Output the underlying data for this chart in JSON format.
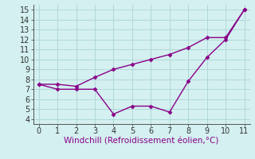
{
  "x": [
    0,
    1,
    2,
    3,
    4,
    5,
    6,
    7,
    8,
    9,
    10,
    11
  ],
  "line1": [
    7.5,
    7.5,
    7.3,
    8.2,
    9.0,
    9.5,
    10.0,
    10.5,
    11.2,
    12.2,
    12.2,
    15.0
  ],
  "line2": [
    7.5,
    7.0,
    7.0,
    7.0,
    4.5,
    5.3,
    5.3,
    4.7,
    7.8,
    10.2,
    12.0,
    15.0
  ],
  "color": "#880088",
  "marker": "D",
  "markersize": 2.5,
  "linewidth": 1.0,
  "xlabel": "Windchill (Refroidissement éolien,°C)",
  "xlim": [
    -0.3,
    11.3
  ],
  "ylim": [
    3.5,
    15.5
  ],
  "yticks": [
    4,
    5,
    6,
    7,
    8,
    9,
    10,
    11,
    12,
    13,
    14,
    15
  ],
  "xticks": [
    0,
    1,
    2,
    3,
    4,
    5,
    6,
    7,
    8,
    9,
    10,
    11
  ],
  "bg_color": "#d4f0f0",
  "grid_color": "#b0d8d8",
  "xlabel_fontsize": 7.5,
  "tick_fontsize": 7.0
}
